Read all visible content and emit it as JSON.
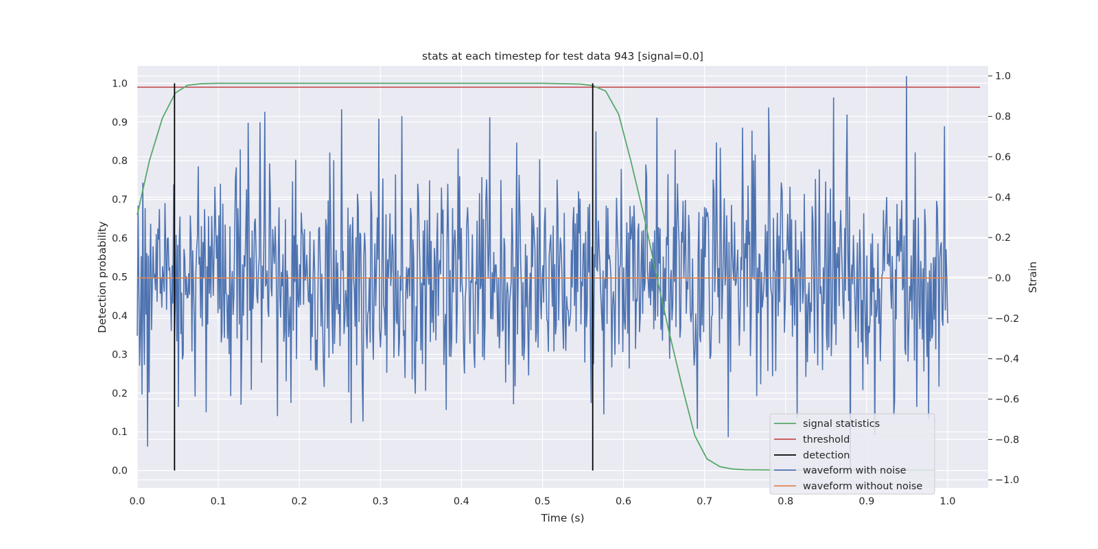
{
  "chart_data": {
    "type": "line",
    "title": "stats at each timestep for test data 943 [signal=0.0]",
    "xlabel": "Time (s)",
    "ylabel_left": "Detection probability",
    "ylabel_right": "Strain",
    "xlim": [
      0.0,
      1.05
    ],
    "ylim_left": [
      -0.045,
      1.045
    ],
    "ylim_right": [
      -1.04,
      1.05
    ],
    "xticks": [
      "0.0",
      "0.1",
      "0.2",
      "0.3",
      "0.4",
      "0.5",
      "0.6",
      "0.7",
      "0.8",
      "0.9",
      "1.0"
    ],
    "yticks_left": [
      "0.0",
      "0.1",
      "0.2",
      "0.3",
      "0.4",
      "0.5",
      "0.6",
      "0.7",
      "0.8",
      "0.9",
      "1.0"
    ],
    "yticks_right": [
      "−1.0",
      "−0.8",
      "−0.6",
      "−0.4",
      "−0.2",
      "0.0",
      "0.2",
      "0.4",
      "0.6",
      "0.8",
      "1.0"
    ],
    "grid": true,
    "legend_position": "lower-right",
    "legend": [
      "signal statistics",
      "threshold",
      "detection",
      "waveform with noise",
      "waveform without noise"
    ],
    "colors": {
      "signal_statistics": "#55a868",
      "threshold": "#c44e52",
      "detection": "#000000",
      "waveform_with_noise": "#4c72b0",
      "waveform_without_noise": "#dd8452",
      "plot_background": "#eaeaf2",
      "grid": "#ffffff"
    },
    "signal_statistics": {
      "x": [
        0.0,
        0.015,
        0.031,
        0.047,
        0.062,
        0.078,
        0.1,
        0.2,
        0.3,
        0.4,
        0.5,
        0.547,
        0.562,
        0.578,
        0.594,
        0.609,
        0.625,
        0.641,
        0.656,
        0.672,
        0.688,
        0.703,
        0.719,
        0.734,
        0.75,
        0.8,
        0.9,
        0.984
      ],
      "y": [
        0.66,
        0.8,
        0.91,
        0.975,
        0.995,
        0.999,
        1.0,
        1.0,
        1.0,
        1.0,
        1.0,
        0.998,
        0.994,
        0.98,
        0.92,
        0.8,
        0.66,
        0.5,
        0.36,
        0.22,
        0.09,
        0.03,
        0.01,
        0.004,
        0.002,
        0.001,
        0.001,
        0.001
      ]
    },
    "threshold": {
      "y": 0.99,
      "x_range": [
        0.0,
        1.04
      ]
    },
    "detection": {
      "x": [
        0.046,
        0.562
      ],
      "y_range": [
        0.0,
        1.0
      ]
    },
    "waveform_with_noise": {
      "x_range": [
        0.0,
        1.0
      ],
      "sample_count": 1024,
      "approx_std": 0.3,
      "approx_range": [
        -0.95,
        1.0
      ]
    },
    "waveform_without_noise": {
      "y": 0.0,
      "x_range": [
        0.0,
        1.0
      ]
    }
  }
}
